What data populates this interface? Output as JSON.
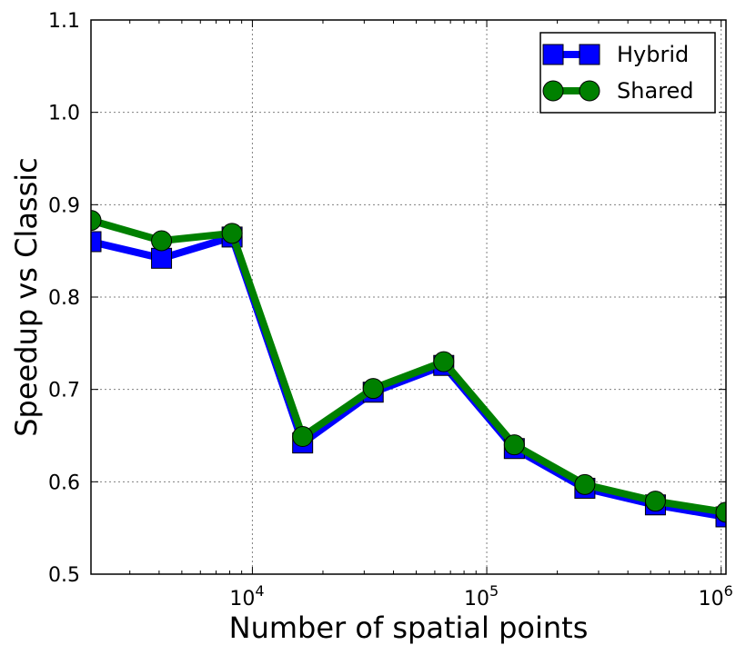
{
  "chart_data": {
    "type": "line",
    "title": "",
    "xlabel": "Number of spatial points",
    "ylabel": "Speedup vs Classic",
    "xscale": "log",
    "xlim": [
      2048,
      1048576
    ],
    "ylim": [
      0.5,
      1.1
    ],
    "x_ticks": [
      10000,
      100000,
      1000000
    ],
    "x_tick_labels": [
      {
        "base": "10",
        "exp": "4"
      },
      {
        "base": "10",
        "exp": "5"
      },
      {
        "base": "10",
        "exp": "6"
      }
    ],
    "y_ticks": [
      0.5,
      0.6,
      0.7,
      0.8,
      0.9,
      1.0,
      1.1
    ],
    "y_tick_labels": [
      "0.5",
      "0.6",
      "0.7",
      "0.8",
      "0.9",
      "1.0",
      "1.1"
    ],
    "grid": true,
    "legend_position": "top-right",
    "x": [
      2048,
      4096,
      8192,
      16384,
      32768,
      65536,
      131072,
      262144,
      524288,
      1048576
    ],
    "series": [
      {
        "name": "Hybrid",
        "marker": "square",
        "color": "#0000ff",
        "values": [
          0.86,
          0.842,
          0.865,
          0.642,
          0.697,
          0.726,
          0.636,
          0.593,
          0.575,
          0.562
        ]
      },
      {
        "name": "Shared",
        "marker": "circle",
        "color": "#008000",
        "values": [
          0.883,
          0.861,
          0.869,
          0.649,
          0.701,
          0.73,
          0.64,
          0.597,
          0.579,
          0.567
        ]
      }
    ]
  }
}
